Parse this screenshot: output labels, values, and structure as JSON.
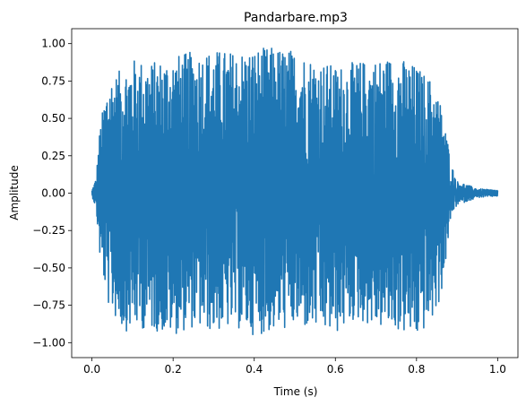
{
  "chart_data": {
    "type": "line",
    "title": "Pandarbare.mp3",
    "xlabel": "Time (s)",
    "ylabel": "Amplitude",
    "xlim": [
      -0.05,
      1.05
    ],
    "ylim": [
      -1.1,
      1.1
    ],
    "x_ticks": [
      0.0,
      0.2,
      0.4,
      0.6,
      0.8,
      1.0
    ],
    "x_tick_labels": [
      "0.0",
      "0.2",
      "0.4",
      "0.6",
      "0.8",
      "1.0"
    ],
    "y_ticks": [
      -1.0,
      -0.75,
      -0.5,
      -0.25,
      0.0,
      0.25,
      0.5,
      0.75,
      1.0
    ],
    "y_tick_labels": [
      "−1.00",
      "−0.75",
      "−0.50",
      "−0.25",
      "0.00",
      "0.25",
      "0.50",
      "0.75",
      "1.00"
    ],
    "grid": false,
    "series": [
      {
        "color": "#1f77b4",
        "envelope_upper": {
          "x": [
            0.0,
            0.01,
            0.02,
            0.04,
            0.06,
            0.08,
            0.1,
            0.15,
            0.2,
            0.25,
            0.3,
            0.35,
            0.4,
            0.45,
            0.5,
            0.55,
            0.6,
            0.65,
            0.7,
            0.75,
            0.8,
            0.84,
            0.86,
            0.88,
            0.885,
            0.9,
            0.95,
            1.0
          ],
          "y": [
            0.02,
            0.1,
            0.45,
            0.78,
            0.8,
            0.85,
            0.9,
            0.88,
            0.92,
            0.95,
            0.96,
            0.95,
            0.97,
            0.98,
            0.96,
            0.9,
            0.85,
            0.88,
            0.9,
            0.92,
            0.85,
            0.75,
            0.6,
            0.3,
            0.2,
            0.08,
            0.03,
            0.02
          ]
        },
        "envelope_lower": {
          "x": [
            0.0,
            0.01,
            0.02,
            0.04,
            0.06,
            0.08,
            0.1,
            0.15,
            0.2,
            0.25,
            0.3,
            0.35,
            0.4,
            0.45,
            0.5,
            0.55,
            0.6,
            0.65,
            0.7,
            0.75,
            0.8,
            0.84,
            0.86,
            0.88,
            0.885,
            0.9,
            0.95,
            1.0
          ],
          "y": [
            -0.02,
            -0.1,
            -0.45,
            -0.75,
            -0.85,
            -0.93,
            -0.9,
            -0.92,
            -0.95,
            -0.9,
            -0.93,
            -0.9,
            -0.95,
            -0.93,
            -0.9,
            -0.92,
            -0.95,
            -0.85,
            -0.9,
            -0.92,
            -0.98,
            -0.85,
            -0.7,
            -0.3,
            -0.15,
            -0.08,
            -0.03,
            -0.02
          ]
        }
      }
    ]
  }
}
